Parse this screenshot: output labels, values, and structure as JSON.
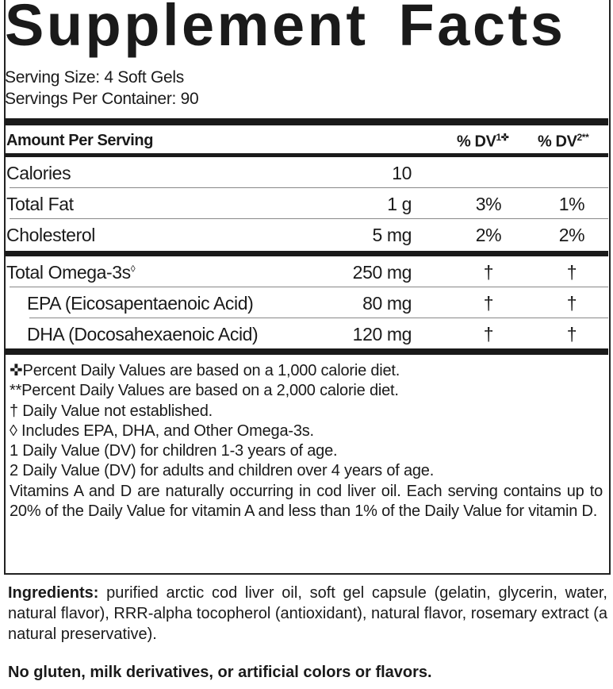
{
  "title": "Supplement Facts",
  "serving_size": "Serving Size: 4 Soft Gels",
  "servings_per_container": "Servings Per Container: 90",
  "header": {
    "amount": "Amount Per Serving",
    "dv1": "% DV",
    "dv1_sup": "1✜",
    "dv2": "% DV",
    "dv2_sup": "2**"
  },
  "rows": [
    {
      "name": "Calories",
      "amount": "10",
      "dv1": "",
      "dv2": ""
    },
    {
      "name": "Total Fat",
      "amount": "1 g",
      "dv1": "3%",
      "dv2": "1%"
    },
    {
      "name": "Cholesterol",
      "amount": "5 mg",
      "dv1": "2%",
      "dv2": "2%"
    },
    {
      "name": "Total Omega-3s",
      "sup": "◊",
      "amount": "250 mg",
      "dv1": "†",
      "dv2": "†"
    },
    {
      "name": "EPA (Eicosapentaenoic Acid)",
      "amount": "80 mg",
      "dv1": "†",
      "dv2": "†"
    },
    {
      "name": "DHA (Docosahexaenoic Acid)",
      "amount": "120 mg",
      "dv1": "†",
      "dv2": "†"
    }
  ],
  "footnotes": [
    "✜Percent Daily Values are based on a 1,000 calorie diet.",
    "**Percent Daily Values are based on a 2,000 calorie diet.",
    "† Daily Value not established.",
    "◊ Includes EPA, DHA, and Other Omega-3s.",
    "1 Daily Value (DV) for children 1-3 years of age.",
    "2 Daily Value (DV) for adults and children over 4 years of age."
  ],
  "vitamin_note": "Vitamins A and D are naturally occurring in cod liver oil. Each serving contains up to 20% of the Daily Value for vitamin A and less than 1% of the Daily Value for vitamin D.",
  "ingredients_label": "Ingredients:",
  "ingredients": " purified arctic cod liver oil, soft gel capsule (gelatin, glycerin, water, natural flavor), RRR-alpha tocopherol (antioxidant), natural flavor, rosemary extract (a natural preservative).",
  "free_from": "No gluten, milk derivatives, or artificial colors or flavors."
}
